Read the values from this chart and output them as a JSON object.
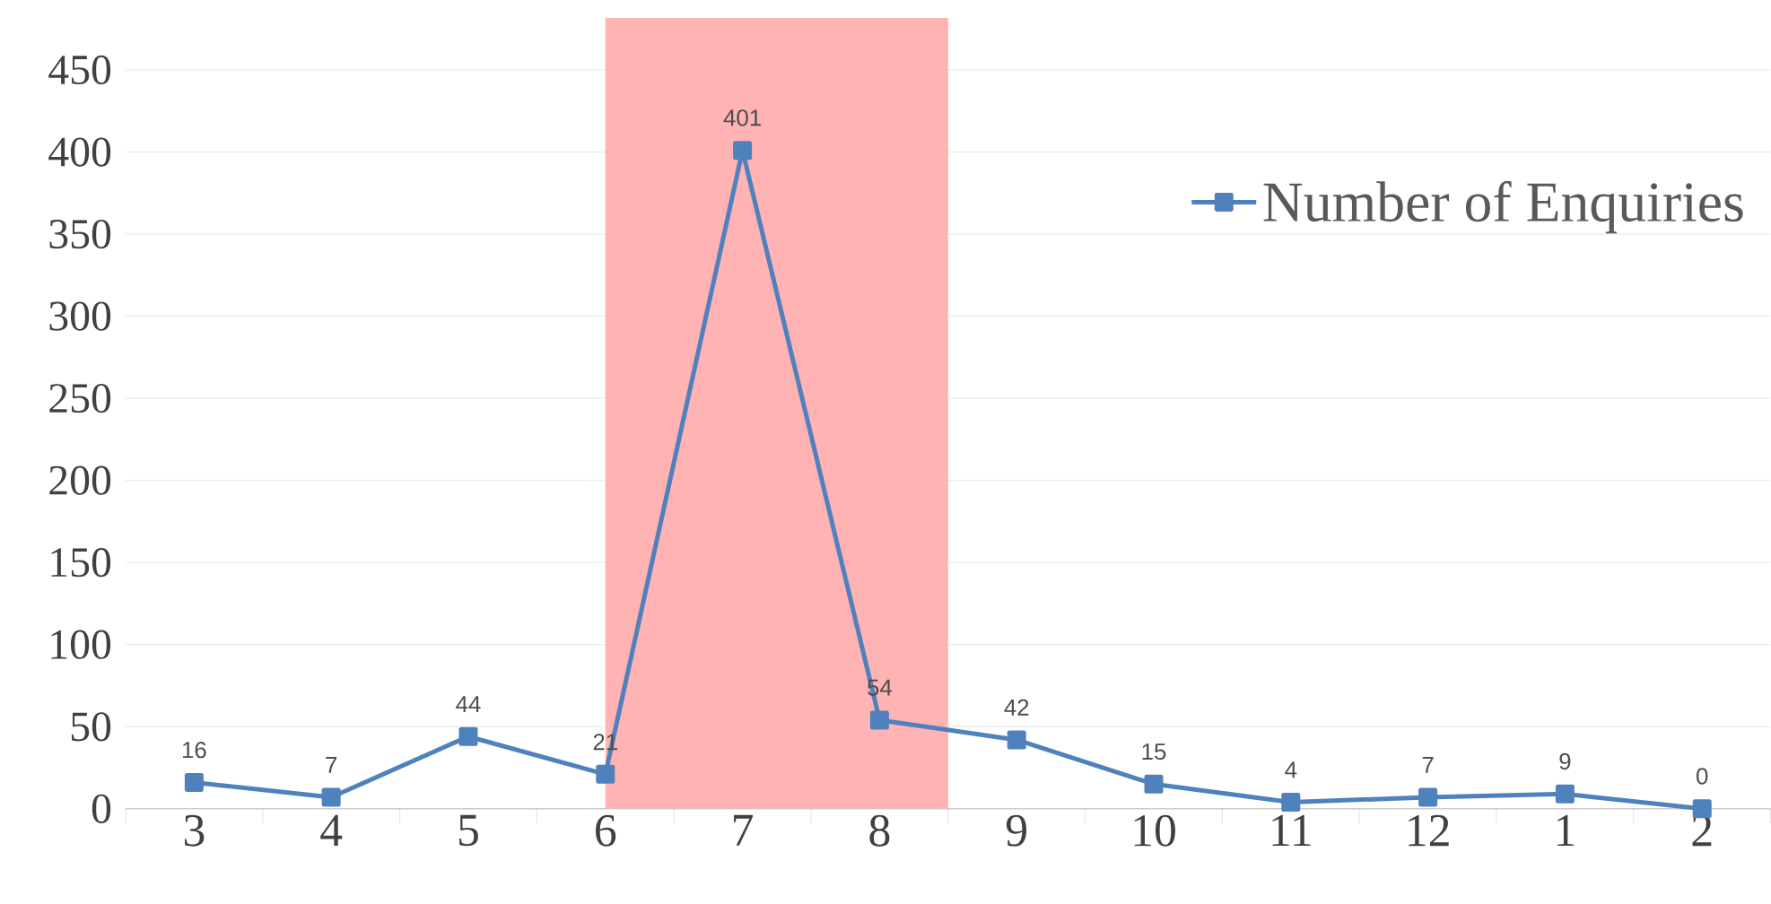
{
  "chart_data": {
    "type": "line",
    "categories": [
      "3",
      "4",
      "5",
      "6",
      "7",
      "8",
      "9",
      "10",
      "11",
      "12",
      "1",
      "2"
    ],
    "series": [
      {
        "name": "Number of Enquiries",
        "color": "#4f81bd",
        "values": [
          16,
          7,
          44,
          21,
          401,
          54,
          42,
          15,
          4,
          7,
          9,
          0
        ]
      }
    ],
    "ylim": [
      0,
      450
    ],
    "yticks": [
      0,
      50,
      100,
      150,
      200,
      250,
      300,
      350,
      400,
      450
    ],
    "bands": [
      {
        "axis": "x",
        "from": "6",
        "to": "8",
        "color": "#ffb3b3"
      }
    ],
    "grid": "y",
    "legend": "top right",
    "marker": "square",
    "line_style": "solid",
    "data_labels": true
  }
}
